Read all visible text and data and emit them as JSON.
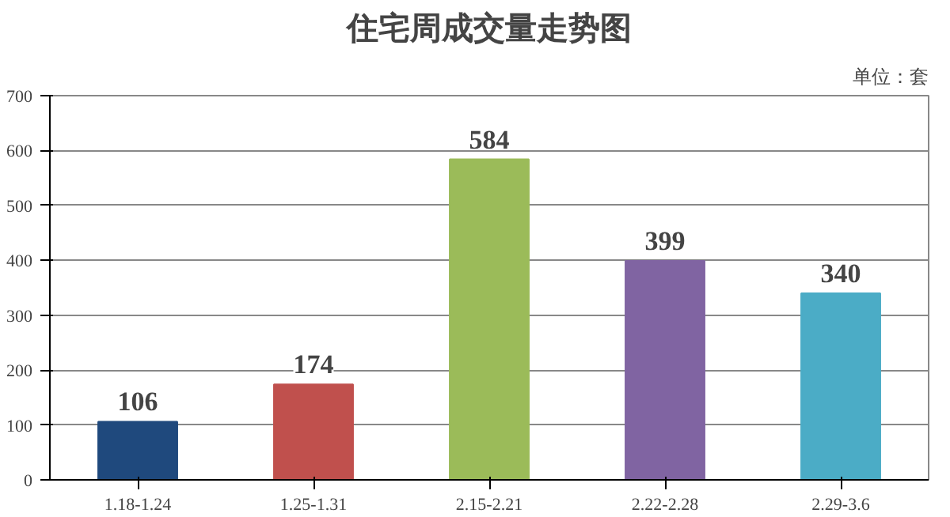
{
  "chart_data": {
    "type": "bar",
    "title": "住宅周成交量走势图",
    "annotations": [
      "单位：套"
    ],
    "categories": [
      "1.18-1.24",
      "1.25-1.31",
      "2.15-2.21",
      "2.22-2.28",
      "2.29-3.6"
    ],
    "values": [
      106,
      174,
      584,
      399,
      340
    ],
    "colors": [
      "#1f497d",
      "#c0504d",
      "#9bbb59",
      "#8064a2",
      "#4bacc6"
    ],
    "ylim": [
      0,
      700
    ],
    "yticks": [
      0,
      100,
      200,
      300,
      400,
      500,
      600,
      700
    ],
    "grid": "y",
    "data_labels": true
  }
}
